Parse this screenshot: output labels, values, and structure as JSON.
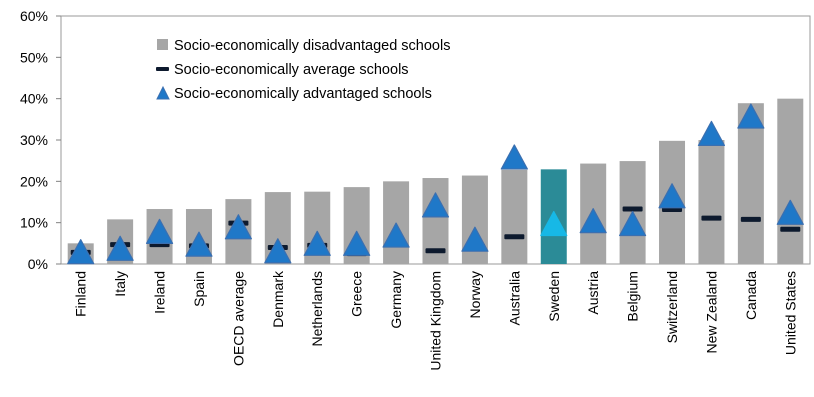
{
  "chart_data": {
    "type": "bar",
    "categories": [
      "Finland",
      "Italy",
      "Ireland",
      "Spain",
      "OECD average",
      "Denmark",
      "Netherlands",
      "Greece",
      "Germany",
      "United Kingdom",
      "Norway",
      "Australia",
      "Sweden",
      "Austria",
      "Belgium",
      "Switzerland",
      "New Zealand",
      "Canada",
      "United States"
    ],
    "series": [
      {
        "name": "Socio-economically disadvantaged schools",
        "marker": "bar",
        "values": [
          5.0,
          10.8,
          13.3,
          13.3,
          15.7,
          17.4,
          17.5,
          18.6,
          20.0,
          20.8,
          21.4,
          22.8,
          22.9,
          24.3,
          24.9,
          29.8,
          30.0,
          38.9,
          40.0
        ]
      },
      {
        "name": "Socio-economically average schools",
        "marker": "dash",
        "values": [
          2.8,
          4.7,
          4.7,
          4.4,
          9.9,
          4.0,
          4.5,
          2.5,
          4.6,
          3.2,
          4.3,
          6.6,
          null,
          8.5,
          13.3,
          13.2,
          11.1,
          10.8,
          8.4
        ]
      },
      {
        "name": "Socio-economically advantaged schools",
        "marker": "triangle",
        "values": [
          3.0,
          3.8,
          7.9,
          4.8,
          9.0,
          3.2,
          5.0,
          5.0,
          7.0,
          14.3,
          6.0,
          25.9,
          9.8,
          10.5,
          9.8,
          16.5,
          31.6,
          35.8,
          12.5
        ]
      }
    ],
    "highlight_category": "Sweden",
    "ylim": [
      0,
      60
    ],
    "yticks": [
      "0%",
      "10%",
      "20%",
      "30%",
      "40%",
      "50%",
      "60%"
    ],
    "legend_position": "top-left",
    "grid": false,
    "colors": {
      "bar": "#a6a6a6",
      "bar_highlight": "#2b8b97",
      "dash": "#0d1a2e",
      "triangle": "#1f78c8",
      "triangle_edge": "#3b6fb0",
      "triangle_highlight": "#17b8e6",
      "plot_bg": "#ffffff",
      "axis": "#808080"
    }
  }
}
